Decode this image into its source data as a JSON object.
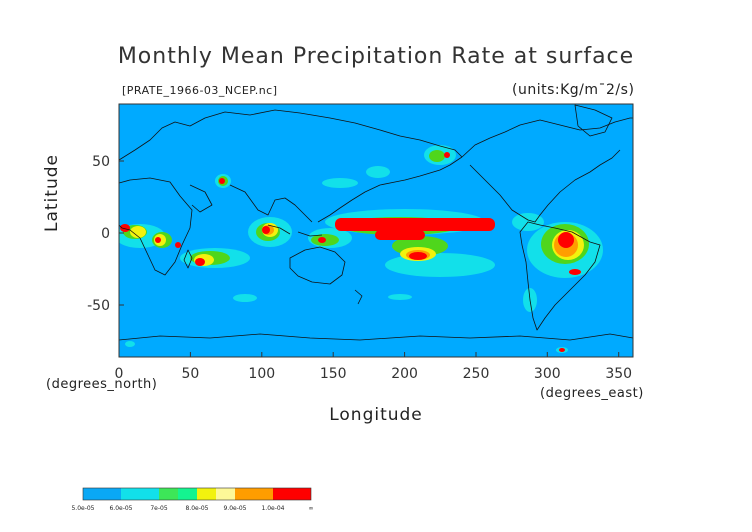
{
  "title": "Monthly Mean Precipitation Rate at surface",
  "subtitle": "[PRATE_1966-03_NCEP.nc]",
  "units": "(units:Kg/m¯2/s)",
  "x_axis": {
    "label": "Longitude",
    "unit_note": "(degrees_east)",
    "ticks": [
      "0",
      "50",
      "100",
      "150",
      "200",
      "250",
      "300",
      "350"
    ]
  },
  "y_axis": {
    "label": "Latitude",
    "unit_note": "(degrees_north)",
    "ticks": [
      "50",
      "0",
      "-50"
    ]
  },
  "colorbar": {
    "labels": [
      "5.0e-05",
      "6.0e-05",
      "7e-05",
      "8.0e-05",
      "9.0e-05",
      "1.0e-04",
      "∞"
    ],
    "colors": [
      "#0aa8f5",
      "#12e0ea",
      "#14f490",
      "#5fe21c",
      "#f2f20e",
      "#fdf898",
      "#ff9d00",
      "#ff0000"
    ]
  },
  "map_colors": {
    "ocean": "#00aaff",
    "coastline": "#111111",
    "cyan": "#12e0ea",
    "green": "#4fd61c",
    "yellow": "#f2f20e",
    "orange": "#ff9d00",
    "red": "#ff0000"
  }
}
